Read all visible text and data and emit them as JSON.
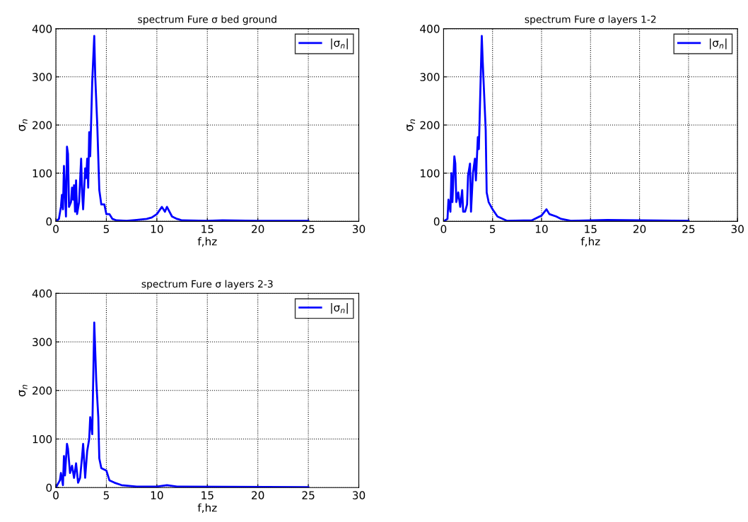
{
  "chart_data": [
    {
      "type": "line",
      "title": "spectrum Fure σ bed ground",
      "xlabel": "f,hz",
      "ylabel": "σ$_{n}$",
      "xlim": [
        0,
        30
      ],
      "ylim": [
        0,
        400
      ],
      "xticks": [
        0,
        5,
        10,
        15,
        20,
        25,
        30
      ],
      "yticks": [
        0,
        100,
        200,
        300,
        400
      ],
      "grid": true,
      "legend": "top right",
      "line_style": "solid",
      "series": [
        {
          "name": "|σ$_{n}$|",
          "color": "#0000ff",
          "x": [
            0,
            0.3,
            0.5,
            0.6,
            0.7,
            0.8,
            0.9,
            1.0,
            1.1,
            1.2,
            1.3,
            1.5,
            1.6,
            1.7,
            1.8,
            1.9,
            2.0,
            2.1,
            2.3,
            2.5,
            2.6,
            2.7,
            2.9,
            3.0,
            3.1,
            3.2,
            3.3,
            3.4,
            3.6,
            3.8,
            3.9,
            4.1,
            4.3,
            4.5,
            4.8,
            5.0,
            5.3,
            5.6,
            6.0,
            7,
            8,
            9,
            9.5,
            10.0,
            10.5,
            10.8,
            11.0,
            11.5,
            12.0,
            12.5,
            15,
            16.5,
            20,
            25
          ],
          "values": [
            0,
            5,
            30,
            55,
            25,
            115,
            60,
            10,
            155,
            140,
            30,
            40,
            70,
            45,
            75,
            20,
            85,
            15,
            40,
            130,
            60,
            25,
            110,
            90,
            130,
            70,
            185,
            135,
            290,
            385,
            300,
            200,
            65,
            35,
            35,
            15,
            15,
            5,
            2,
            1,
            3,
            5,
            8,
            15,
            30,
            20,
            30,
            10,
            5,
            2,
            1,
            2,
            1,
            1
          ]
        }
      ]
    },
    {
      "type": "line",
      "title": "spectrum Fure σ layers 1-2",
      "xlabel": "f,hz",
      "ylabel": "σ$_{n}$",
      "xlim": [
        0,
        30
      ],
      "ylim": [
        0,
        400
      ],
      "xticks": [
        0,
        5,
        10,
        15,
        20,
        25,
        30
      ],
      "yticks": [
        0,
        100,
        200,
        300,
        400
      ],
      "grid": true,
      "legend": "top right",
      "line_style": "solid",
      "series": [
        {
          "name": "|σ$_{n}$|",
          "color": "#0000ff",
          "x": [
            0,
            0.4,
            0.5,
            0.7,
            0.8,
            0.9,
            1.1,
            1.2,
            1.3,
            1.5,
            1.7,
            1.9,
            2.0,
            2.2,
            2.4,
            2.5,
            2.7,
            2.8,
            3.0,
            3.2,
            3.3,
            3.5,
            3.6,
            3.9,
            4.0,
            4.3,
            4.4,
            4.6,
            5.0,
            5.5,
            6.5,
            9,
            10.0,
            10.5,
            10.8,
            11.5,
            12.0,
            13,
            16.7,
            25
          ],
          "values": [
            0,
            5,
            45,
            20,
            100,
            40,
            135,
            120,
            40,
            60,
            30,
            65,
            20,
            20,
            35,
            95,
            120,
            20,
            100,
            130,
            85,
            175,
            150,
            385,
            330,
            190,
            60,
            40,
            25,
            10,
            1,
            2,
            12,
            25,
            15,
            10,
            5,
            1,
            3,
            1
          ]
        }
      ]
    },
    {
      "type": "line",
      "title": "spectrum Fure σ layers 2-3",
      "xlabel": "f,hz",
      "ylabel": "σ$_{n}$",
      "xlim": [
        0,
        30
      ],
      "ylim": [
        0,
        400
      ],
      "xticks": [
        0,
        5,
        10,
        15,
        20,
        25,
        30
      ],
      "yticks": [
        0,
        100,
        200,
        300,
        400
      ],
      "grid": true,
      "legend": "top right",
      "line_style": "solid",
      "series": [
        {
          "name": "|σ$_{n}$|",
          "color": "#0000ff",
          "x": [
            0,
            0.4,
            0.5,
            0.7,
            0.8,
            0.9,
            1.1,
            1.2,
            1.4,
            1.6,
            1.8,
            2.0,
            2.2,
            2.4,
            2.6,
            2.7,
            2.9,
            3.1,
            3.3,
            3.4,
            3.6,
            3.8,
            4.0,
            4.2,
            4.3,
            4.5,
            5.0,
            5.3,
            5.8,
            6.5,
            8,
            10,
            11,
            12,
            25
          ],
          "values": [
            0,
            15,
            30,
            5,
            65,
            25,
            90,
            80,
            30,
            45,
            20,
            50,
            10,
            20,
            65,
            90,
            20,
            75,
            100,
            145,
            110,
            340,
            220,
            145,
            60,
            40,
            35,
            15,
            10,
            5,
            2,
            2,
            5,
            2,
            1
          ]
        }
      ]
    }
  ]
}
